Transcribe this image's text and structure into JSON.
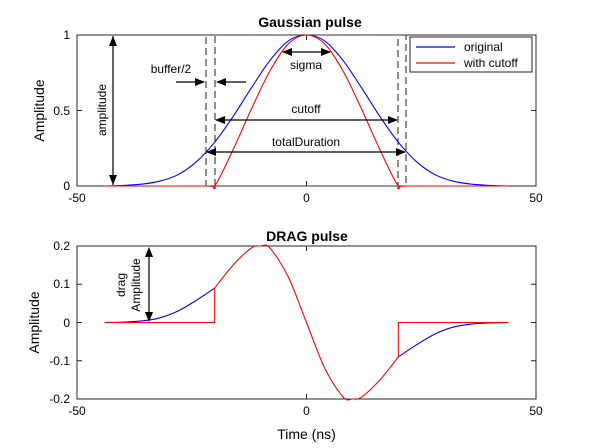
{
  "chart_data": [
    {
      "type": "line",
      "title": "Gaussian pulse",
      "xlabel": "",
      "ylabel": "Amplitude",
      "xlim": [
        -50,
        50
      ],
      "ylim": [
        0,
        1
      ],
      "xticks": [
        -50,
        0,
        50
      ],
      "yticks": [
        0,
        0.5,
        1
      ],
      "xtick_labels": [
        "-50",
        "0",
        "50"
      ],
      "ytick_labels": [
        "0",
        "0.5",
        "1"
      ],
      "grid": false,
      "legend": "top-right",
      "series": [
        {
          "name": "original",
          "color": "#0000ff",
          "x": [
            -44,
            -40,
            -36,
            -32,
            -28,
            -24,
            -20,
            -16,
            -12,
            -8,
            -4,
            0,
            4,
            8,
            12,
            16,
            20,
            24,
            28,
            32,
            36,
            40,
            44
          ],
          "y": [
            0.0,
            0.004,
            0.012,
            0.032,
            0.075,
            0.16,
            0.29,
            0.46,
            0.65,
            0.83,
            0.96,
            1.0,
            0.96,
            0.83,
            0.65,
            0.46,
            0.29,
            0.16,
            0.075,
            0.032,
            0.012,
            0.004,
            0.0
          ]
        },
        {
          "name": "with cutoff",
          "color": "#ff0000",
          "x": [
            -44,
            -22,
            -20,
            -16,
            -12,
            -8,
            -4,
            0,
            4,
            8,
            12,
            16,
            20,
            22,
            44
          ],
          "y": [
            0.0,
            0.0,
            0.0,
            0.24,
            0.51,
            0.76,
            0.94,
            1.0,
            0.94,
            0.76,
            0.51,
            0.24,
            0.0,
            0.0,
            0.0
          ]
        }
      ],
      "annotations": [
        {
          "text": "amplitude"
        },
        {
          "text": "buffer/2"
        },
        {
          "text": "sigma"
        },
        {
          "text": "cutoff"
        },
        {
          "text": "totalDuration"
        }
      ]
    },
    {
      "type": "line",
      "title": "DRAG pulse",
      "xlabel": "Time (ns)",
      "ylabel": "Amplitude",
      "xlim": [
        -50,
        50
      ],
      "ylim": [
        -0.2,
        0.2
      ],
      "xticks": [
        -50,
        0,
        50
      ],
      "yticks": [
        -0.2,
        -0.1,
        0,
        0.1,
        0.2
      ],
      "xtick_labels": [
        "-50",
        "0",
        "50"
      ],
      "ytick_labels": [
        "-0.2",
        "-0.1",
        "0",
        "0.1",
        "0.2"
      ],
      "grid": false,
      "series": [
        {
          "name": "original",
          "color": "#0000ff",
          "x": [
            -44,
            -40,
            -36,
            -32,
            -28,
            -24,
            -20
          ],
          "y": [
            0.0,
            0.001,
            0.004,
            0.012,
            0.03,
            0.058,
            0.09
          ]
        },
        {
          "name": "original",
          "color": "#0000ff",
          "x": [
            20,
            24,
            28,
            32,
            36,
            40,
            44
          ],
          "y": [
            -0.09,
            -0.058,
            -0.03,
            -0.012,
            -0.004,
            -0.001,
            0.0
          ]
        },
        {
          "name": "with cutoff",
          "color": "#ff0000",
          "x": [
            -44,
            -20,
            -20,
            -16,
            -12,
            -10,
            -8,
            -4,
            0,
            4,
            8,
            10,
            12,
            16,
            20,
            20,
            44
          ],
          "y": [
            0.0,
            0.0,
            0.09,
            0.15,
            0.195,
            0.2,
            0.195,
            0.12,
            0.0,
            -0.12,
            -0.195,
            -0.2,
            -0.195,
            -0.15,
            -0.09,
            0.0,
            0.0
          ]
        }
      ],
      "annotations": [
        {
          "text": "drag"
        },
        {
          "text": "Amplitude"
        }
      ]
    }
  ]
}
